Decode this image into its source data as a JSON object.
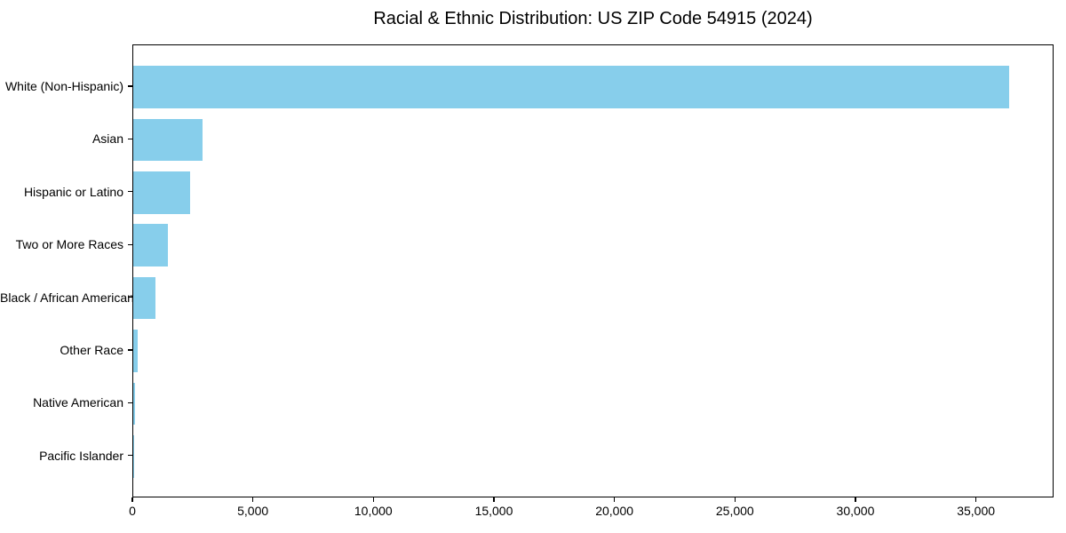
{
  "chart_data": {
    "type": "bar",
    "orientation": "horizontal",
    "title": "Racial & Ethnic Distribution: US ZIP Code 54915 (2024)",
    "categories": [
      "White (Non-Hispanic)",
      "Asian",
      "Hispanic or Latino",
      "Two or More Races",
      "Black / African American",
      "Other Race",
      "Native American",
      "Pacific Islander"
    ],
    "values": [
      36400,
      2880,
      2360,
      1440,
      940,
      200,
      60,
      10
    ],
    "xlabel": "",
    "ylabel": "",
    "xlim": [
      0,
      38220
    ],
    "xticks": [
      0,
      5000,
      10000,
      15000,
      20000,
      25000,
      30000,
      35000
    ],
    "xtick_labels": [
      "0",
      "5,000",
      "10,000",
      "15,000",
      "20,000",
      "25,000",
      "30,000",
      "35,000"
    ],
    "bar_color": "#87CEEB",
    "axis_color": "#000000",
    "text_color": "#000000",
    "grid": false,
    "legend": null
  }
}
